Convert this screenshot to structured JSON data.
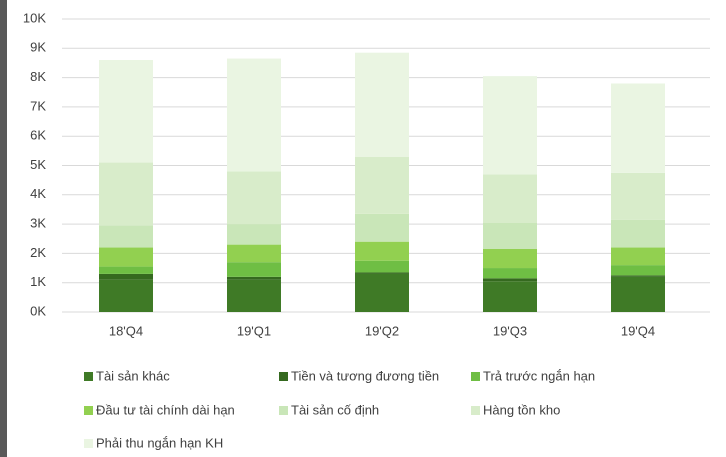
{
  "chart_data": {
    "type": "stacked_bar",
    "categories": [
      "18'Q4",
      "19'Q1",
      "19'Q2",
      "19'Q3",
      "19'Q4"
    ],
    "series": [
      {
        "name": "Tài sản khác",
        "color": "#3f7a26",
        "values": [
          1100,
          1100,
          1300,
          1050,
          1200
        ]
      },
      {
        "name": "Tiền và tương đương tiền",
        "color": "#35691f",
        "values": [
          200,
          100,
          50,
          100,
          50
        ]
      },
      {
        "name": "Trả trước ngắn hạn",
        "color": "#6fbe44",
        "values": [
          250,
          500,
          400,
          350,
          350
        ]
      },
      {
        "name": "Đầu tư tài chính dài hạn",
        "color": "#92d050",
        "values": [
          650,
          600,
          650,
          650,
          600
        ]
      },
      {
        "name": "Tài sản cố định",
        "color": "#c9e6b8",
        "values": [
          750,
          700,
          950,
          900,
          950
        ]
      },
      {
        "name": "Hàng tồn kho",
        "color": "#d8ecca",
        "values": [
          2150,
          1800,
          1950,
          1650,
          1600
        ]
      },
      {
        "name": "Phải thu ngắn hạn KH",
        "color": "#eaf5e2",
        "values": [
          3500,
          3850,
          3550,
          3350,
          3050
        ]
      }
    ],
    "ylim": [
      0,
      10000
    ],
    "yticks": [
      {
        "value": 0,
        "label": "0K"
      },
      {
        "value": 1000,
        "label": "1K"
      },
      {
        "value": 2000,
        "label": "2K"
      },
      {
        "value": 3000,
        "label": "3K"
      },
      {
        "value": 4000,
        "label": "4K"
      },
      {
        "value": 5000,
        "label": "5K"
      },
      {
        "value": 6000,
        "label": "6K"
      },
      {
        "value": 7000,
        "label": "7K"
      },
      {
        "value": 8000,
        "label": "8K"
      },
      {
        "value": 9000,
        "label": "9K"
      },
      {
        "value": 10000,
        "label": "10K"
      }
    ],
    "grid": true,
    "legend": "bottom"
  }
}
